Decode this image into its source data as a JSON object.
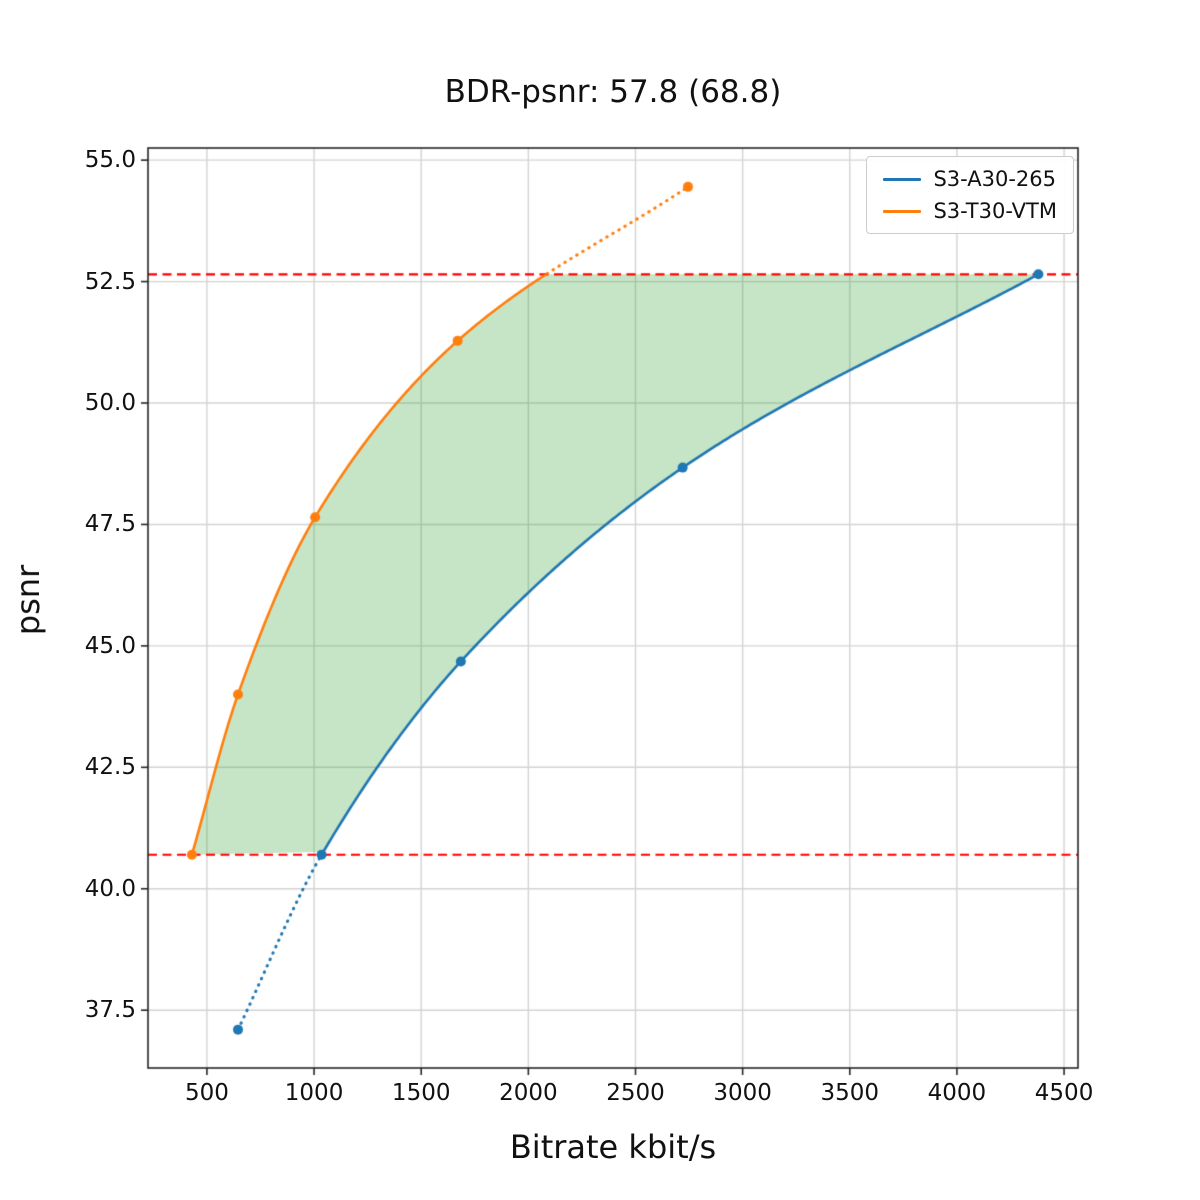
{
  "figure": {
    "background": "#ffffff"
  },
  "chart_data": {
    "type": "line",
    "title": "BDR-psnr: 57.8 (68.8)",
    "xlabel": "Bitrate kbit/s",
    "ylabel": "psnr",
    "xlim": [
      225,
      4565
    ],
    "ylim": [
      36.31,
      55.25
    ],
    "x_ticks": [
      500,
      1000,
      1500,
      2000,
      2500,
      3000,
      3500,
      4000,
      4500
    ],
    "y_ticks": [
      37.5,
      40.0,
      42.5,
      45.0,
      47.5,
      50.0,
      52.5,
      55.0
    ],
    "grid": true,
    "grid_color": "#d4d4d4",
    "legend_position": "upper right",
    "series": [
      {
        "name": "S3-A30-265",
        "color": "#1f77b4",
        "marker": "circle",
        "x": [
          645,
          1035,
          1685,
          2720,
          4380
        ],
        "y": [
          37.1,
          40.7,
          44.68,
          48.67,
          52.65
        ],
        "dotted_region": "below_lower_reference"
      },
      {
        "name": "S3-T30-VTM",
        "color": "#ff7f0e",
        "marker": "circle",
        "x": [
          430,
          645,
          1005,
          1670,
          2745
        ],
        "y": [
          40.7,
          44.0,
          47.65,
          51.28,
          54.45
        ],
        "dotted_region": "above_upper_reference"
      }
    ],
    "reference_lines": {
      "color": "#ff0000",
      "style": "dashed",
      "values": [
        40.7,
        52.65
      ]
    },
    "shaded_region": {
      "fill_color": "rgba(44,160,44,0.27)",
      "description": "area between the two rate-distortion curves within the psnr overlap interval"
    }
  }
}
